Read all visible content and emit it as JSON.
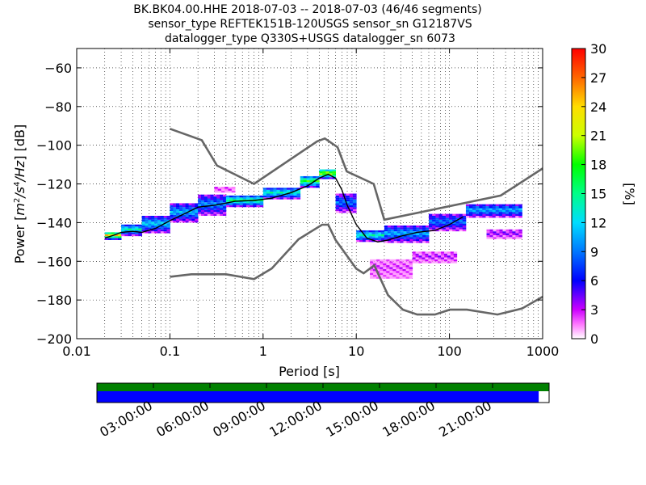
{
  "chart_data": {
    "type": "heatmap",
    "title_lines": [
      "BK.BK04.00.HHE   2018-07-03 -- 2018-07-03  (46/46 segments)",
      "sensor_type REFTEK151B-120USGS sensor_sn G12187VS",
      "datalogger_type Q330S+USGS datalogger_sn 6073"
    ],
    "xlabel": "Period [s]",
    "ylabel_parts": [
      "Power [",
      "m",
      "2",
      "/",
      "s",
      "4",
      "/",
      "Hz",
      "] [dB]"
    ],
    "x_scale": "log",
    "xlim": [
      0.01,
      1000
    ],
    "ylim": [
      -200,
      -50
    ],
    "x_ticks": [
      0.01,
      0.1,
      1,
      10,
      100,
      1000
    ],
    "x_tick_labels": [
      "0.01",
      "0.1",
      "1",
      "10",
      "100",
      "1000"
    ],
    "y_ticks": [
      -200,
      -180,
      -160,
      -140,
      -120,
      -100,
      -80,
      -60
    ],
    "y_tick_labels": [
      "−200",
      "−180",
      "−160",
      "−140",
      "−120",
      "−100",
      "−80",
      "−60"
    ],
    "grid": true,
    "colorbar": {
      "label": "[%]",
      "range": [
        0,
        30
      ],
      "ticks": [
        0,
        3,
        6,
        9,
        12,
        15,
        18,
        21,
        24,
        27,
        30
      ],
      "tick_labels": [
        "0",
        "3",
        "6",
        "9",
        "12",
        "15",
        "18",
        "21",
        "24",
        "27",
        "30"
      ]
    },
    "noise_models": {
      "high": {
        "x": [
          0.1,
          0.22,
          0.32,
          0.8,
          3.8,
          4.6,
          6.3,
          7.9,
          15.4,
          20,
          354.8,
          1000
        ],
        "y": [
          -91.5,
          -97.4,
          -110.5,
          -120,
          -98,
          -96.5,
          -101,
          -113.5,
          -120,
          -138.5,
          -126,
          -112
        ]
      },
      "low": {
        "x": [
          0.1,
          0.17,
          0.4,
          0.8,
          1.24,
          2.4,
          4.3,
          5,
          6,
          10,
          12,
          15.6,
          21.9,
          31.6,
          45,
          70,
          101,
          154,
          328,
          600,
          1000
        ],
        "y": [
          -168,
          -166.7,
          -166.7,
          -169.2,
          -163.7,
          -148.6,
          -141.1,
          -141.1,
          -149,
          -163.8,
          -166.2,
          -162.1,
          -177.5,
          -185,
          -187.5,
          -187.5,
          -185,
          -185,
          -187.5,
          -184.4,
          -178.3
        ]
      }
    },
    "mean_curve": {
      "x": [
        0.02,
        0.025,
        0.03,
        0.04,
        0.05,
        0.07,
        0.1,
        0.15,
        0.2,
        0.3,
        0.5,
        0.8,
        1.2,
        2,
        3,
        4,
        5,
        6,
        7,
        8,
        10,
        13,
        17,
        22,
        30,
        45,
        70,
        100,
        140
      ],
      "y": [
        -148,
        -146.5,
        -145,
        -144.5,
        -145,
        -143,
        -139,
        -135,
        -132,
        -131,
        -129,
        -128.5,
        -127.5,
        -124.5,
        -121,
        -117,
        -115,
        -117,
        -123,
        -131,
        -141,
        -148,
        -150,
        -149,
        -147,
        -145,
        -144,
        -141,
        -137
      ]
    },
    "density_bands": [
      {
        "x0": 0.02,
        "x1": 0.03,
        "center": -147,
        "width": 4,
        "percent": 24
      },
      {
        "x0": 0.03,
        "x1": 0.05,
        "center": -144,
        "width": 6,
        "percent": 14
      },
      {
        "x0": 0.05,
        "x1": 0.1,
        "center": -141,
        "width": 9,
        "percent": 12
      },
      {
        "x0": 0.1,
        "x1": 0.2,
        "center": -135,
        "width": 10,
        "percent": 11
      },
      {
        "x0": 0.2,
        "x1": 0.4,
        "center": -131,
        "width": 11,
        "percent": 10
      },
      {
        "x0": 0.4,
        "x1": 1.0,
        "center": -129,
        "width": 6,
        "percent": 16
      },
      {
        "x0": 1.0,
        "x1": 2.5,
        "center": -125,
        "width": 6,
        "percent": 14
      },
      {
        "x0": 2.5,
        "x1": 4.0,
        "center": -119,
        "width": 6,
        "percent": 18
      },
      {
        "x0": 4.0,
        "x1": 6.0,
        "center": -115,
        "width": 5,
        "percent": 22
      },
      {
        "x0": 6.0,
        "x1": 10.0,
        "center": -130,
        "width": 10,
        "percent": 9
      },
      {
        "x0": 10.0,
        "x1": 20.0,
        "center": -147,
        "width": 6,
        "percent": 14
      },
      {
        "x0": 20.0,
        "x1": 60.0,
        "center": -146,
        "width": 9,
        "percent": 11
      },
      {
        "x0": 60.0,
        "x1": 150.0,
        "center": -140,
        "width": 9,
        "percent": 9
      },
      {
        "x0": 150.0,
        "x1": 600.0,
        "center": -134,
        "width": 7,
        "percent": 11
      }
    ],
    "outlier_bands": [
      {
        "x0": 14,
        "x1": 40,
        "center": -164,
        "width": 10,
        "percent": 2
      },
      {
        "x0": 40,
        "x1": 120,
        "center": -158,
        "width": 6,
        "percent": 3
      },
      {
        "x0": 250,
        "x1": 600,
        "center": -146,
        "width": 5,
        "percent": 4
      },
      {
        "x0": 0.3,
        "x1": 0.5,
        "center": -123,
        "width": 3,
        "percent": 2
      }
    ]
  },
  "timeline": {
    "tick_labels": [
      "03:00:00",
      "06:00:00",
      "09:00:00",
      "12:00:00",
      "15:00:00",
      "18:00:00",
      "21:00:00"
    ],
    "coverage_fraction": 0.977,
    "colors": {
      "availability": "#008000",
      "coverage": "#0000ff"
    }
  }
}
